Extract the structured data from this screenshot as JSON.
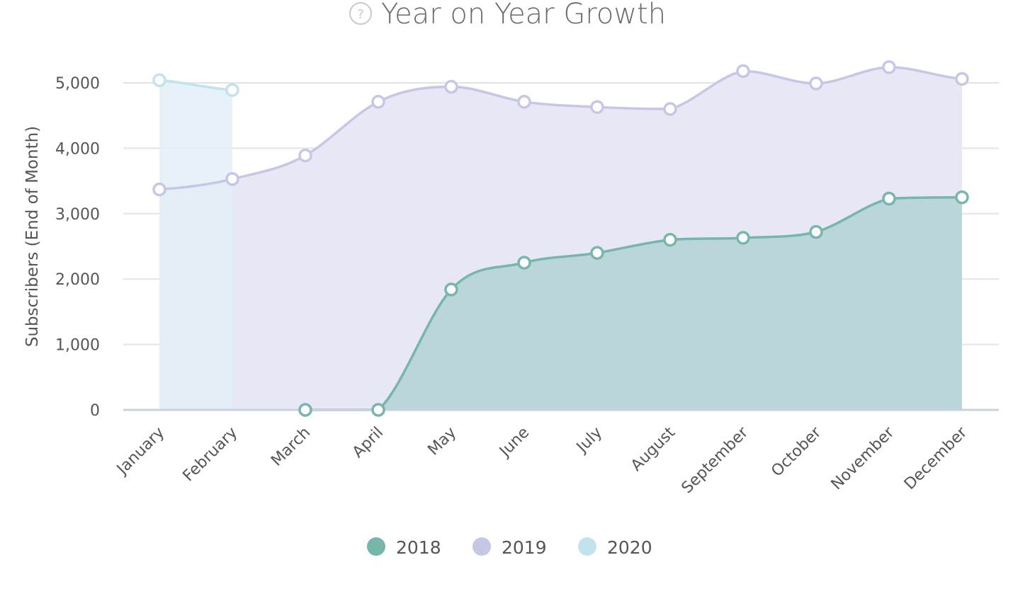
{
  "chart_data": {
    "type": "area",
    "title": "Year on Year Growth",
    "help_icon": "question-circle-icon",
    "xlabel": "",
    "ylabel": "Subscribers (End of Month)",
    "ylim": [
      0,
      5500
    ],
    "yticks": [
      0,
      1000,
      2000,
      3000,
      4000,
      5000
    ],
    "ytick_labels": [
      "0",
      "1,000",
      "2,000",
      "3,000",
      "4,000",
      "5,000"
    ],
    "categories": [
      "January",
      "February",
      "March",
      "April",
      "May",
      "June",
      "July",
      "August",
      "September",
      "October",
      "November",
      "December"
    ],
    "grid": true,
    "legend_position": "bottom",
    "series": [
      {
        "name": "2018",
        "color": "#76b6ab",
        "fill": "#b8d5d8",
        "values": [
          null,
          null,
          0,
          0,
          1840,
          2250,
          2400,
          2600,
          2630,
          2720,
          3230,
          3250
        ]
      },
      {
        "name": "2019",
        "color": "#c6c6e6",
        "fill": "#e6e6f4",
        "values": [
          3370,
          3530,
          3890,
          4710,
          4940,
          4710,
          4630,
          4600,
          5180,
          4990,
          5240,
          5060
        ]
      },
      {
        "name": "2020",
        "color": "#c2e2ec",
        "fill": "#e2eff7",
        "values": [
          5040,
          4890,
          null,
          null,
          null,
          null,
          null,
          null,
          null,
          null,
          null,
          null
        ]
      }
    ]
  }
}
